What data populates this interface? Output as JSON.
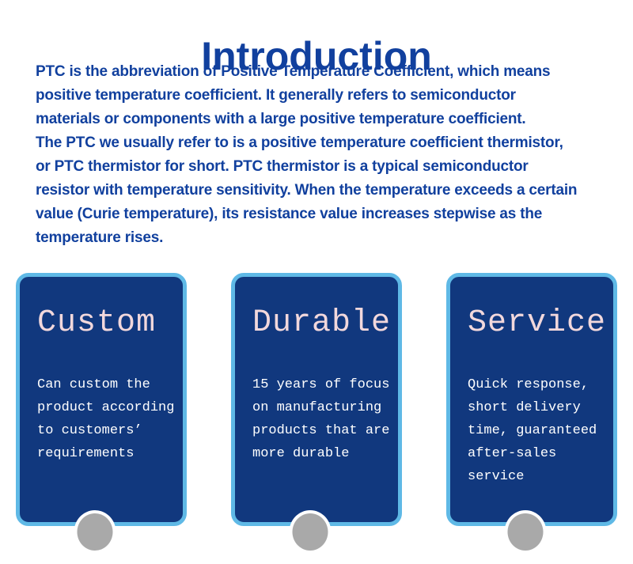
{
  "page": {
    "title": "Introduction"
  },
  "intro": {
    "text": "PTC is the abbreviation of Positive Temperature Coefficient, which means\npositive temperature coefficient. It generally refers to semiconductor\nmaterials or components with a large positive temperature coefficient.\nThe PTC we usually refer to is a positive temperature coefficient thermistor,\nor PTC thermistor for short. PTC thermistor is a typical semiconductor\nresistor with temperature sensitivity. When the temperature exceeds a certain\nvalue (Curie temperature), its resistance value increases stepwise as the\ntemperature rises."
  },
  "cards": [
    {
      "title": "Custom",
      "body": "Can custom the\nproduct according\nto customers’\nrequirements"
    },
    {
      "title": "Durable",
      "body": "15 years of focus\non manufacturing\nproducts that are\nmore durable"
    },
    {
      "title": "Service",
      "body": "Quick response,\nshort delivery\ntime, guaranteed\nafter-sales service"
    }
  ],
  "colors": {
    "accent_blue": "#11409E",
    "card_background": "#11387E",
    "card_border_light_blue": "#5FB9E6",
    "card_title_pink": "#F2D8DC",
    "card_body_white": "#FFFFFF",
    "dot_gray": "#A9A9A9"
  }
}
